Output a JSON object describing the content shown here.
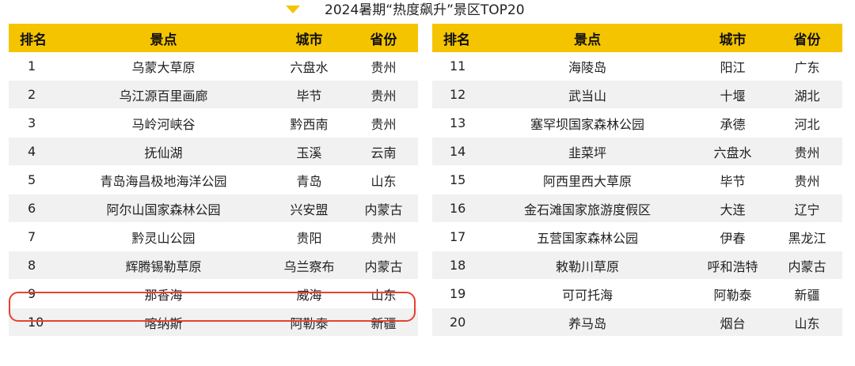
{
  "title": {
    "text": "2024暑期“热度飙升”景区TOP20",
    "arrow_icon": "triangle-down-icon",
    "arrow_color": "#f5c400"
  },
  "header_color": "#f5c400",
  "highlight_color": "#e8402e",
  "columns": [
    "排名",
    "景点",
    "城市",
    "省份"
  ],
  "left_rows": [
    {
      "rank": "1",
      "spot": "乌蒙大草原",
      "city": "六盘水",
      "province": "贵州"
    },
    {
      "rank": "2",
      "spot": "乌江源百里画廊",
      "city": "毕节",
      "province": "贵州"
    },
    {
      "rank": "3",
      "spot": "马岭河峡谷",
      "city": "黔西南",
      "province": "贵州"
    },
    {
      "rank": "4",
      "spot": "抚仙湖",
      "city": "玉溪",
      "province": "云南"
    },
    {
      "rank": "5",
      "spot": "青岛海昌极地海洋公园",
      "city": "青岛",
      "province": "山东"
    },
    {
      "rank": "6",
      "spot": "阿尔山国家森林公园",
      "city": "兴安盟",
      "province": "内蒙古"
    },
    {
      "rank": "7",
      "spot": "黔灵山公园",
      "city": "贵阳",
      "province": "贵州"
    },
    {
      "rank": "8",
      "spot": "辉腾锡勒草原",
      "city": "乌兰察布",
      "province": "内蒙古"
    },
    {
      "rank": "9",
      "spot": "那香海",
      "city": "威海",
      "province": "山东"
    },
    {
      "rank": "10",
      "spot": "喀纳斯",
      "city": "阿勒泰",
      "province": "新疆"
    }
  ],
  "right_rows": [
    {
      "rank": "11",
      "spot": "海陵岛",
      "city": "阳江",
      "province": "广东"
    },
    {
      "rank": "12",
      "spot": "武当山",
      "city": "十堰",
      "province": "湖北"
    },
    {
      "rank": "13",
      "spot": "塞罕坝国家森林公园",
      "city": "承德",
      "province": "河北"
    },
    {
      "rank": "14",
      "spot": "韭菜坪",
      "city": "六盘水",
      "province": "贵州"
    },
    {
      "rank": "15",
      "spot": "阿西里西大草原",
      "city": "毕节",
      "province": "贵州"
    },
    {
      "rank": "16",
      "spot": "金石滩国家旅游度假区",
      "city": "大连",
      "province": "辽宁"
    },
    {
      "rank": "17",
      "spot": "五营国家森林公园",
      "city": "伊春",
      "province": "黑龙江"
    },
    {
      "rank": "18",
      "spot": "敕勒川草原",
      "city": "呼和浩特",
      "province": "内蒙古"
    },
    {
      "rank": "19",
      "spot": "可可托海",
      "city": "阿勒泰",
      "province": "新疆"
    },
    {
      "rank": "20",
      "spot": "养马岛",
      "city": "烟台",
      "province": "山东"
    }
  ]
}
